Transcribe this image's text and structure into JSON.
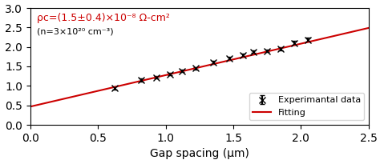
{
  "chart_data": {
    "type": "scatter",
    "xlabel": "Gap spacing (μm)",
    "xlim": [
      0.0,
      2.5
    ],
    "ylim": [
      0.0,
      3.0
    ],
    "xticks": [
      0.0,
      0.5,
      1.0,
      1.5,
      2.0,
      2.5
    ],
    "yticks": [
      0.0,
      0.5,
      1.0,
      1.5,
      2.0,
      2.5,
      3.0
    ],
    "series": [
      {
        "name": "Experimantal data",
        "type": "scatter",
        "marker": "x",
        "color": "#000000",
        "x": [
          0.62,
          0.82,
          0.93,
          1.03,
          1.12,
          1.22,
          1.35,
          1.47,
          1.57,
          1.65,
          1.75,
          1.85,
          1.95,
          2.05
        ],
        "values": [
          0.95,
          1.15,
          1.22,
          1.3,
          1.38,
          1.45,
          1.6,
          1.7,
          1.78,
          1.88,
          1.9,
          1.96,
          2.1,
          2.18
        ],
        "yerr": [
          0.04,
          0.04,
          0.03,
          0.03,
          0.03,
          0.03,
          0.04,
          0.04,
          0.04,
          0.04,
          0.04,
          0.04,
          0.05,
          0.05
        ]
      },
      {
        "name": "Fitting",
        "type": "line",
        "color": "#cc0000",
        "x": [
          0.0,
          2.5
        ],
        "values": [
          0.468,
          2.488
        ]
      }
    ],
    "legend": "lower right",
    "annotations": [
      {
        "text": "ρc=(1.5±0.4)×10⁻⁸ Ω-cm²",
        "color": "#cc0000"
      },
      {
        "text": "(n=3×10²⁰ cm⁻³)"
      }
    ]
  }
}
